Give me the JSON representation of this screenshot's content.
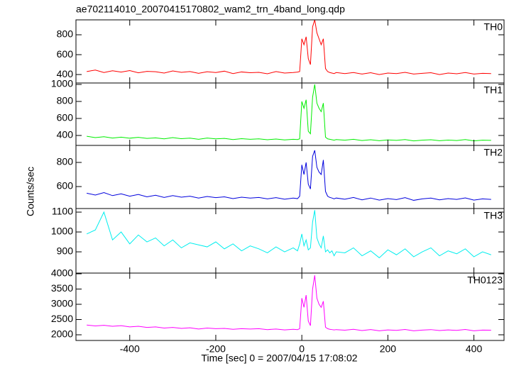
{
  "chart_data": [
    {
      "type": "line",
      "title": "ae702114010_20070415170802_wam2_trn_4band_long.qdp",
      "x": [
        -500,
        -480,
        -460,
        -440,
        -420,
        -400,
        -380,
        -360,
        -340,
        -320,
        -300,
        -280,
        -260,
        -240,
        -220,
        -200,
        -180,
        -160,
        -140,
        -120,
        -100,
        -80,
        -60,
        -40,
        -20,
        -10,
        -5,
        0,
        5,
        10,
        15,
        20,
        25,
        30,
        35,
        40,
        45,
        50,
        55,
        60,
        65,
        70,
        75,
        80,
        100,
        120,
        140,
        160,
        180,
        200,
        220,
        240,
        260,
        280,
        300,
        320,
        340,
        360,
        380,
        400,
        420,
        440
      ],
      "series": [
        {
          "name": "TH0",
          "color": "#ff0000",
          "values": [
            430,
            445,
            420,
            438,
            425,
            440,
            418,
            432,
            428,
            415,
            436,
            422,
            430,
            412,
            428,
            420,
            434,
            410,
            426,
            418,
            422,
            408,
            430,
            415,
            420,
            425,
            430,
            760,
            700,
            780,
            560,
            500,
            880,
            950,
            820,
            760,
            700,
            760,
            460,
            430,
            420,
            415,
            410,
            420,
            410,
            420,
            405,
            418,
            400,
            415,
            410,
            422,
            405,
            412,
            418,
            400,
            415,
            408,
            420,
            405,
            412,
            410
          ]
        }
      ],
      "xlim": [
        -525,
        470
      ],
      "ylim": [
        315,
        950
      ],
      "yticks": [
        400,
        600,
        800
      ]
    },
    {
      "type": "line",
      "x": [
        -500,
        -480,
        -460,
        -440,
        -420,
        -400,
        -380,
        -360,
        -340,
        -320,
        -300,
        -280,
        -260,
        -240,
        -220,
        -200,
        -180,
        -160,
        -140,
        -120,
        -100,
        -80,
        -60,
        -40,
        -20,
        -10,
        -5,
        0,
        5,
        10,
        15,
        20,
        25,
        30,
        35,
        40,
        45,
        50,
        55,
        60,
        65,
        70,
        75,
        80,
        100,
        120,
        140,
        160,
        180,
        200,
        220,
        240,
        260,
        280,
        300,
        320,
        340,
        360,
        380,
        400,
        420,
        440
      ],
      "series": [
        {
          "name": "TH1",
          "color": "#00ee00",
          "values": [
            390,
            375,
            385,
            370,
            380,
            368,
            378,
            365,
            372,
            360,
            375,
            362,
            368,
            355,
            370,
            360,
            365,
            352,
            362,
            355,
            360,
            350,
            358,
            348,
            355,
            352,
            360,
            800,
            720,
            820,
            450,
            420,
            850,
            1000,
            780,
            720,
            680,
            780,
            380,
            360,
            355,
            350,
            345,
            352,
            345,
            355,
            340,
            350,
            338,
            348,
            342,
            352,
            336,
            345,
            350,
            338,
            346,
            340,
            352,
            336,
            345,
            342
          ]
        }
      ],
      "xlim": [
        -525,
        470
      ],
      "ylim": [
        283,
        1017
      ],
      "yticks": [
        400,
        600,
        800,
        1000
      ]
    },
    {
      "type": "line",
      "y_label": "Counts/sec",
      "x": [
        -500,
        -480,
        -460,
        -440,
        -420,
        -400,
        -380,
        -360,
        -340,
        -320,
        -300,
        -280,
        -260,
        -240,
        -220,
        -200,
        -180,
        -160,
        -140,
        -120,
        -100,
        -80,
        -60,
        -40,
        -20,
        -10,
        -5,
        0,
        5,
        10,
        15,
        20,
        25,
        30,
        35,
        40,
        45,
        50,
        55,
        60,
        65,
        70,
        75,
        80,
        100,
        120,
        140,
        160,
        180,
        200,
        220,
        240,
        260,
        280,
        300,
        320,
        340,
        360,
        380,
        400,
        420,
        440
      ],
      "series": [
        {
          "name": "TH2",
          "color": "#0000dd",
          "values": [
            545,
            530,
            550,
            525,
            540,
            520,
            535,
            515,
            528,
            510,
            525,
            512,
            520,
            505,
            518,
            508,
            515,
            500,
            512,
            505,
            510,
            498,
            508,
            495,
            505,
            500,
            520,
            780,
            700,
            800,
            620,
            580,
            850,
            900,
            760,
            720,
            700,
            820,
            560,
            520,
            510,
            505,
            498,
            505,
            495,
            510,
            490,
            505,
            488,
            500,
            492,
            508,
            486,
            498,
            505,
            490,
            500,
            494,
            506,
            488,
            498,
            494
          ]
        }
      ],
      "xlim": [
        -525,
        470
      ],
      "ylim": [
        418,
        941
      ],
      "yticks": [
        600,
        800
      ]
    },
    {
      "type": "line",
      "x": [
        -500,
        -480,
        -460,
        -440,
        -420,
        -400,
        -380,
        -360,
        -340,
        -320,
        -300,
        -280,
        -260,
        -240,
        -220,
        -200,
        -180,
        -160,
        -140,
        -120,
        -100,
        -80,
        -60,
        -40,
        -20,
        -10,
        -5,
        0,
        5,
        10,
        15,
        20,
        25,
        30,
        35,
        40,
        45,
        50,
        55,
        60,
        65,
        70,
        75,
        80,
        100,
        120,
        140,
        160,
        180,
        200,
        220,
        240,
        260,
        280,
        300,
        320,
        340,
        360,
        380,
        400,
        420,
        440
      ],
      "series": [
        {
          "name": "TH3",
          "color": "#00eeee",
          "values": [
            990,
            1010,
            1100,
            960,
            1000,
            940,
            985,
            950,
            970,
            930,
            960,
            920,
            945,
            935,
            925,
            950,
            915,
            940,
            905,
            930,
            915,
            895,
            925,
            900,
            920,
            905,
            940,
            990,
            930,
            960,
            910,
            920,
            1050,
            1110,
            970,
            940,
            920,
            980,
            900,
            910,
            895,
            905,
            880,
            900,
            895,
            920,
            880,
            905,
            870,
            910,
            885,
            915,
            875,
            900,
            920,
            880,
            905,
            890,
            915,
            875,
            900,
            885
          ]
        }
      ],
      "xlim": [
        -525,
        470
      ],
      "ylim": [
        793,
        1118
      ],
      "yticks": [
        900,
        1000,
        1100
      ]
    },
    {
      "type": "line",
      "x_label": "Time [sec] 0 = 2007/04/15 17:08:02",
      "x": [
        -500,
        -480,
        -460,
        -440,
        -420,
        -400,
        -380,
        -360,
        -340,
        -320,
        -300,
        -280,
        -260,
        -240,
        -220,
        -200,
        -180,
        -160,
        -140,
        -120,
        -100,
        -80,
        -60,
        -40,
        -20,
        -10,
        -5,
        0,
        5,
        10,
        15,
        20,
        25,
        30,
        35,
        40,
        45,
        50,
        55,
        60,
        65,
        70,
        75,
        80,
        100,
        120,
        140,
        160,
        180,
        200,
        220,
        240,
        260,
        280,
        300,
        320,
        340,
        360,
        380,
        400,
        420,
        440
      ],
      "series": [
        {
          "name": "TH0123",
          "color": "#ff00ff",
          "values": [
            2320,
            2290,
            2310,
            2280,
            2300,
            2260,
            2280,
            2240,
            2260,
            2220,
            2240,
            2210,
            2230,
            2190,
            2220,
            2200,
            2210,
            2180,
            2200,
            2190,
            2200,
            2170,
            2190,
            2160,
            2180,
            2170,
            2200,
            3200,
            2900,
            3300,
            2450,
            2300,
            3500,
            3950,
            3200,
            3000,
            2900,
            3100,
            2250,
            2200,
            2180,
            2170,
            2160,
            2170,
            2150,
            2180,
            2140,
            2170,
            2130,
            2160,
            2145,
            2175,
            2130,
            2155,
            2170,
            2140,
            2160,
            2145,
            2175,
            2130,
            2155,
            2150
          ]
        }
      ],
      "xlim": [
        -525,
        470
      ],
      "ylim": [
        1814,
        4023
      ],
      "yticks": [
        2000,
        2500,
        3000,
        3500,
        4000
      ],
      "xticks": [
        -400,
        -200,
        0,
        200,
        400
      ]
    }
  ]
}
